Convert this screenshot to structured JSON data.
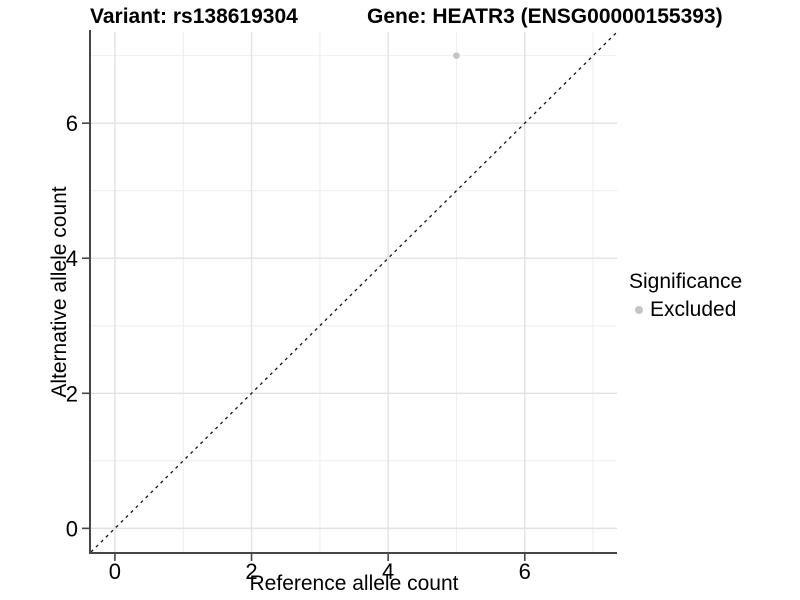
{
  "chart_data": {
    "type": "scatter",
    "titles": {
      "left": "Variant: rs138619304",
      "right": "Gene: HEATR3 (ENSG00000155393)"
    },
    "xlabel": "Reference allele count",
    "ylabel": "Alternative allele count",
    "xlim": [
      -0.35,
      7.35
    ],
    "ylim": [
      -0.35,
      7.35
    ],
    "xticks": [
      0,
      2,
      4,
      6
    ],
    "yticks": [
      0,
      2,
      4,
      6
    ],
    "xticks_minor": [
      1,
      3,
      5,
      7
    ],
    "yticks_minor": [
      1,
      3,
      5,
      7
    ],
    "grid": "major and minor gridlines, light grey on white panel",
    "points": [
      {
        "x": 5,
        "y": 7,
        "significance": "Excluded"
      }
    ],
    "identity_line": {
      "style": "dashed",
      "from": [
        -0.35,
        -0.35
      ],
      "to": [
        7.35,
        7.35
      ]
    },
    "legend": {
      "title": "Significance",
      "position": "right",
      "items": [
        {
          "label": "Excluded",
          "color": "#c4c4c4"
        }
      ]
    },
    "colors": {
      "point": "#c4c4c4",
      "grid_major": "#e2e2e2",
      "grid_minor": "#efefef",
      "axis": "#464646",
      "dashed_line": "#111111",
      "text": "#000000"
    }
  }
}
